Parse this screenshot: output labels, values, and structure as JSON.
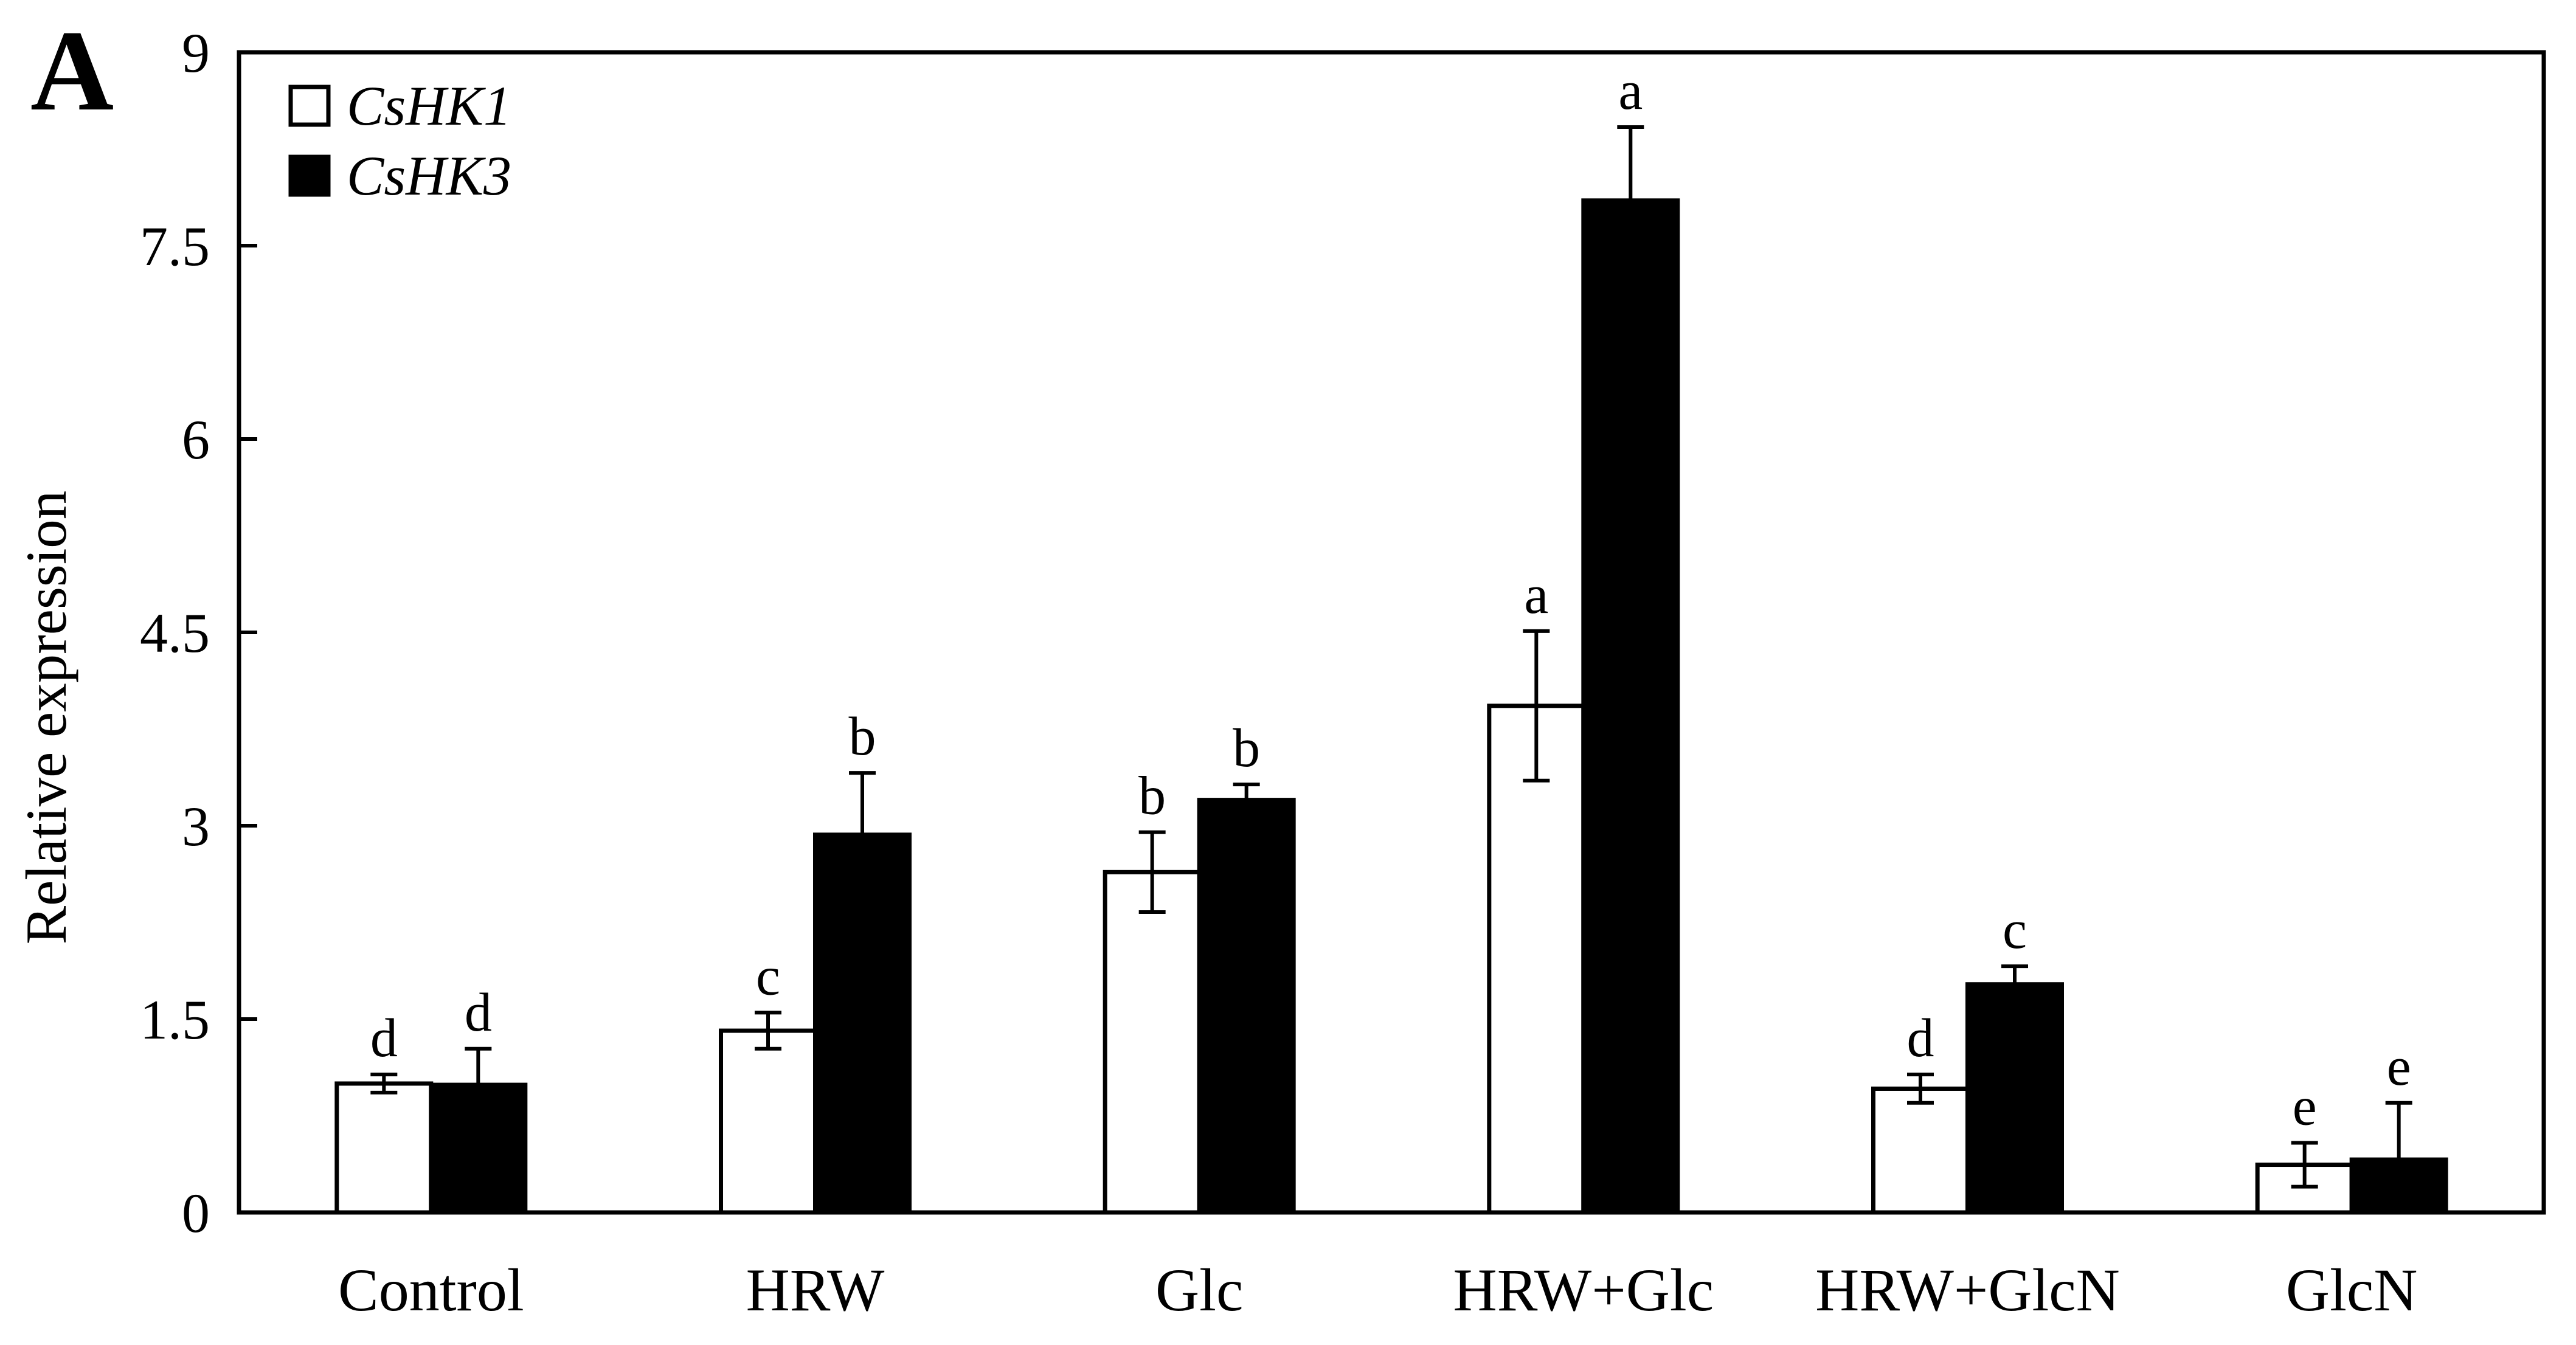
{
  "panel_letter": "A",
  "chart_data": {
    "type": "bar",
    "categories": [
      "Control",
      "HRW",
      "Glc",
      "HRW+Glc",
      "HRW+GlcN",
      "GlcN"
    ],
    "ylabel": "Relative expression",
    "xlabel": "",
    "ylim": [
      0,
      9
    ],
    "yticks": [
      0,
      1.5,
      3,
      4.5,
      6,
      7.5,
      9
    ],
    "ytick_labels": [
      "0",
      "1.5",
      "3",
      "4.5",
      "6",
      "7.5",
      "9"
    ],
    "legend_position": "top-left",
    "series": [
      {
        "name": "CsHK1",
        "fill": "#ffffff",
        "values": [
          1.0,
          1.41,
          2.64,
          3.93,
          0.96,
          0.37
        ],
        "errors": [
          0.07,
          0.14,
          0.31,
          0.58,
          0.11,
          0.17
        ],
        "letters": [
          "d",
          "c",
          "b",
          "a",
          "d",
          "e"
        ]
      },
      {
        "name": "CsHK3",
        "fill": "#000000",
        "values": [
          0.99,
          2.93,
          3.2,
          7.85,
          1.77,
          0.41
        ],
        "errors": [
          0.28,
          0.48,
          0.12,
          0.57,
          0.14,
          0.44
        ],
        "letters": [
          "d",
          "b",
          "b",
          "a",
          "c",
          "e"
        ]
      }
    ]
  }
}
